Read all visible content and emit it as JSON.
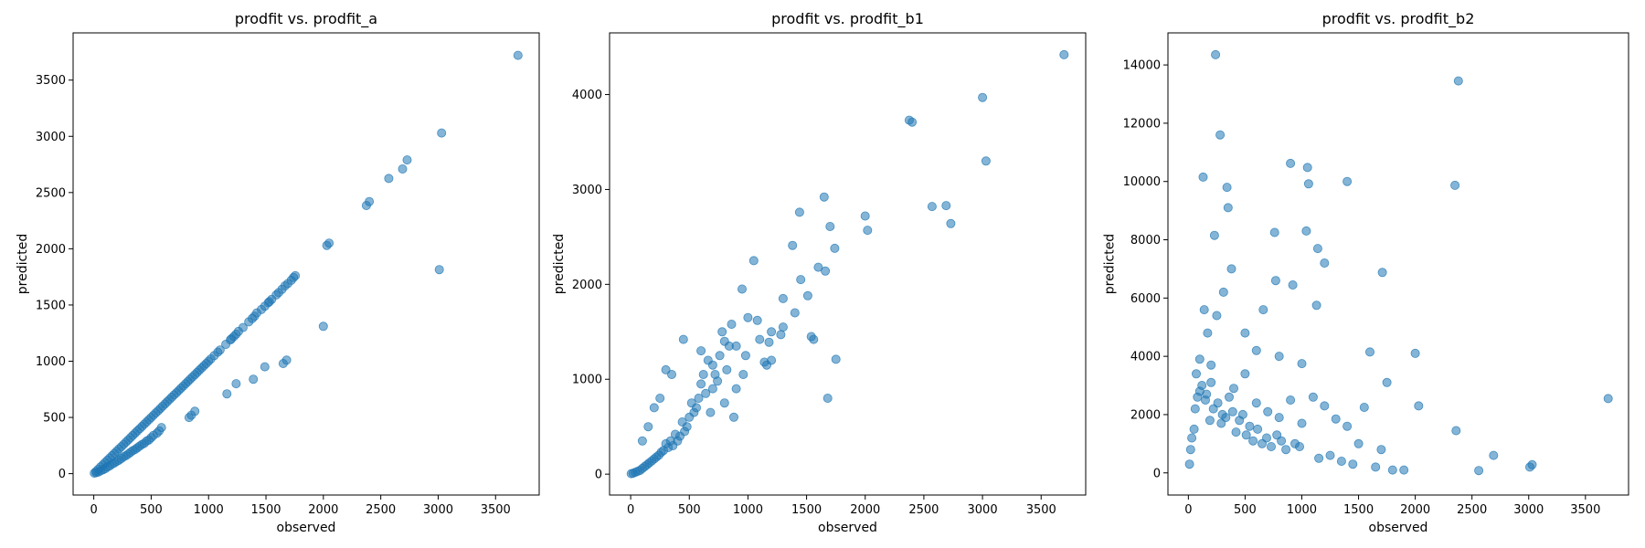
{
  "chart_data": [
    {
      "type": "scatter",
      "title": "prodfit vs. prodfit_a",
      "xlabel": "observed",
      "ylabel": "predicted",
      "xlim": [
        -180,
        3880
      ],
      "ylim": [
        -190,
        3920
      ],
      "xticks": [
        "0",
        "500",
        "1000",
        "1500",
        "2000",
        "2500",
        "3000",
        "3500"
      ],
      "xtick_values": [
        0,
        500,
        1000,
        1500,
        2000,
        2500,
        3000,
        3500
      ],
      "yticks": [
        "0",
        "500",
        "1000",
        "1500",
        "2000",
        "2500",
        "3000",
        "3500"
      ],
      "ytick_values": [
        0,
        500,
        1000,
        1500,
        2000,
        2500,
        3000,
        3500
      ],
      "color": "#1f77b4",
      "alpha": 0.55,
      "grid": false,
      "x": [
        3695,
        3030,
        3010,
        2730,
        2690,
        2570,
        2400,
        2375,
        2050,
        2030,
        2000,
        1755,
        1740,
        1720,
        1690,
        1665,
        1640,
        1610,
        1590,
        1550,
        1530,
        1520,
        1490,
        1460,
        1420,
        1400,
        1380,
        1350,
        1300,
        1260,
        1240,
        1220,
        1200,
        1190,
        1150,
        1100,
        1080,
        1050,
        1020,
        1000,
        980,
        960,
        940,
        920,
        900,
        880,
        860,
        840,
        820,
        800,
        780,
        760,
        740,
        720,
        700,
        680,
        660,
        640,
        620,
        600,
        580,
        560,
        540,
        520,
        500,
        480,
        460,
        440,
        420,
        400,
        380,
        360,
        340,
        320,
        300,
        280,
        260,
        240,
        220,
        200,
        180,
        160,
        140,
        120,
        100,
        80,
        60,
        40,
        20,
        5,
        1680,
        1650,
        1490,
        1390,
        1240,
        1160,
        880,
        850,
        830,
        590,
        570,
        550,
        520,
        500,
        480,
        460,
        440,
        420,
        400,
        380,
        360,
        340,
        320,
        300,
        280,
        260,
        240,
        220,
        200,
        180,
        160,
        140,
        120,
        100,
        80,
        60,
        40,
        20
      ],
      "y": [
        3720,
        3030,
        1815,
        2790,
        2710,
        2625,
        2420,
        2385,
        2050,
        2030,
        1310,
        1760,
        1745,
        1720,
        1690,
        1670,
        1640,
        1610,
        1590,
        1550,
        1530,
        1520,
        1490,
        1460,
        1430,
        1400,
        1380,
        1350,
        1300,
        1265,
        1240,
        1220,
        1200,
        1190,
        1150,
        1100,
        1080,
        1050,
        1020,
        1000,
        980,
        960,
        940,
        920,
        900,
        880,
        860,
        840,
        820,
        800,
        780,
        760,
        740,
        720,
        700,
        680,
        660,
        640,
        620,
        600,
        580,
        560,
        540,
        520,
        500,
        480,
        460,
        440,
        420,
        400,
        380,
        360,
        340,
        320,
        300,
        280,
        260,
        240,
        220,
        200,
        180,
        160,
        140,
        120,
        100,
        80,
        60,
        40,
        20,
        5,
        1010,
        980,
        950,
        840,
        800,
        710,
        555,
        520,
        500,
        410,
        380,
        360,
        340,
        320,
        300,
        290,
        270,
        260,
        245,
        230,
        215,
        205,
        190,
        175,
        160,
        150,
        135,
        120,
        110,
        95,
        85,
        70,
        60,
        45,
        35,
        25,
        15,
        8
      ]
    },
    {
      "type": "scatter",
      "title": "prodfit vs. prodfit_b1",
      "xlabel": "observed",
      "ylabel": "predicted",
      "xlim": [
        -180,
        3880
      ],
      "ylim": [
        -220,
        4650
      ],
      "xticks": [
        "0",
        "500",
        "1000",
        "1500",
        "2000",
        "2500",
        "3000",
        "3500"
      ],
      "xtick_values": [
        0,
        500,
        1000,
        1500,
        2000,
        2500,
        3000,
        3500
      ],
      "yticks": [
        "0",
        "1000",
        "2000",
        "3000",
        "4000"
      ],
      "ytick_values": [
        0,
        1000,
        2000,
        3000,
        4000
      ],
      "color": "#1f77b4",
      "alpha": 0.55,
      "grid": false,
      "x": [
        3695,
        3030,
        3000,
        2730,
        2690,
        2570,
        2400,
        2375,
        2020,
        2000,
        1750,
        1740,
        1700,
        1680,
        1660,
        1650,
        1600,
        1560,
        1540,
        1510,
        1450,
        1440,
        1400,
        1380,
        1300,
        1280,
        1200,
        1180,
        1160,
        1140,
        1080,
        1050,
        1000,
        980,
        960,
        950,
        900,
        880,
        860,
        840,
        820,
        800,
        780,
        760,
        740,
        720,
        700,
        680,
        660,
        640,
        620,
        600,
        580,
        560,
        540,
        520,
        500,
        480,
        460,
        440,
        420,
        400,
        380,
        360,
        340,
        320,
        300,
        280,
        260,
        240,
        220,
        200,
        180,
        160,
        140,
        120,
        100,
        80,
        60,
        40,
        20,
        5,
        450,
        350,
        300,
        250,
        200,
        150,
        100,
        600,
        700,
        800,
        900,
        1100,
        1200,
        1300
      ],
      "y": [
        4420,
        3300,
        3970,
        2640,
        2830,
        2820,
        3710,
        3730,
        2570,
        2720,
        1210,
        2380,
        2610,
        800,
        2140,
        2920,
        2180,
        1420,
        1450,
        1880,
        2050,
        2760,
        1700,
        2410,
        1850,
        1470,
        1500,
        1390,
        1150,
        1180,
        1620,
        2250,
        1650,
        1250,
        1050,
        1950,
        900,
        600,
        1580,
        1350,
        1100,
        750,
        1500,
        1250,
        980,
        1050,
        900,
        650,
        1200,
        850,
        1050,
        950,
        800,
        700,
        650,
        750,
        600,
        500,
        450,
        550,
        400,
        350,
        420,
        300,
        350,
        280,
        320,
        250,
        230,
        200,
        180,
        160,
        140,
        120,
        100,
        80,
        60,
        40,
        30,
        20,
        10,
        5,
        1420,
        1050,
        1100,
        800,
        700,
        500,
        350,
        1300,
        1150,
        1400,
        1350,
        1420,
        1200,
        1550
      ]
    },
    {
      "type": "scatter",
      "title": "prodfit vs. prodfit_b2",
      "xlabel": "observed",
      "ylabel": "predicted",
      "xlim": [
        -180,
        3880
      ],
      "ylim": [
        -760,
        15100
      ],
      "xticks": [
        "0",
        "500",
        "1000",
        "1500",
        "2000",
        "2500",
        "3000",
        "3500"
      ],
      "xtick_values": [
        0,
        500,
        1000,
        1500,
        2000,
        2500,
        3000,
        3500
      ],
      "yticks": [
        "0",
        "2000",
        "4000",
        "6000",
        "8000",
        "10000",
        "12000",
        "14000"
      ],
      "ytick_values": [
        0,
        2000,
        4000,
        6000,
        8000,
        10000,
        12000,
        14000
      ],
      "color": "#1f77b4",
      "alpha": 0.55,
      "grid": false,
      "x": [
        240,
        2380,
        280,
        130,
        2350,
        900,
        1050,
        1060,
        1400,
        340,
        350,
        760,
        1040,
        1140,
        1200,
        230,
        770,
        1710,
        1130,
        310,
        380,
        660,
        920,
        140,
        170,
        250,
        100,
        70,
        200,
        500,
        600,
        800,
        1000,
        1550,
        1600,
        2000,
        2030,
        1750,
        3700,
        2360,
        2690,
        2560,
        3010,
        3030,
        1500,
        1300,
        1400,
        1700,
        1900,
        1200,
        1100,
        1000,
        900,
        800,
        700,
        600,
        500,
        400,
        300,
        200,
        150,
        100,
        50,
        20,
        10,
        30,
        60,
        80,
        120,
        160,
        190,
        220,
        260,
        290,
        330,
        360,
        390,
        420,
        450,
        480,
        510,
        540,
        570,
        610,
        650,
        690,
        730,
        780,
        820,
        860,
        940,
        980,
        1150,
        1250,
        1350,
        1450,
        1650,
        1800
      ],
      "y": [
        14350,
        13450,
        11600,
        10150,
        9870,
        10620,
        10480,
        9920,
        10000,
        9800,
        9100,
        8250,
        8300,
        7700,
        7200,
        8150,
        6600,
        6880,
        5750,
        6200,
        7000,
        5600,
        6450,
        5600,
        4800,
        5400,
        3900,
        3400,
        3700,
        4800,
        4200,
        4000,
        3750,
        2250,
        4150,
        4100,
        2300,
        3100,
        2550,
        1450,
        600,
        80,
        200,
        280,
        1000,
        1850,
        1600,
        800,
        100,
        2300,
        2600,
        1700,
        2500,
        1900,
        2100,
        2400,
        3400,
        2900,
        2000,
        3100,
        2500,
        2800,
        1500,
        800,
        300,
        1200,
        2200,
        2600,
        3000,
        2700,
        1800,
        2200,
        2400,
        1700,
        1900,
        2600,
        2100,
        1400,
        1800,
        2000,
        1300,
        1600,
        1100,
        1500,
        1000,
        1200,
        900,
        1300,
        1100,
        800,
        1000,
        900,
        500,
        600,
        400,
        300,
        200,
        100
      ]
    }
  ]
}
